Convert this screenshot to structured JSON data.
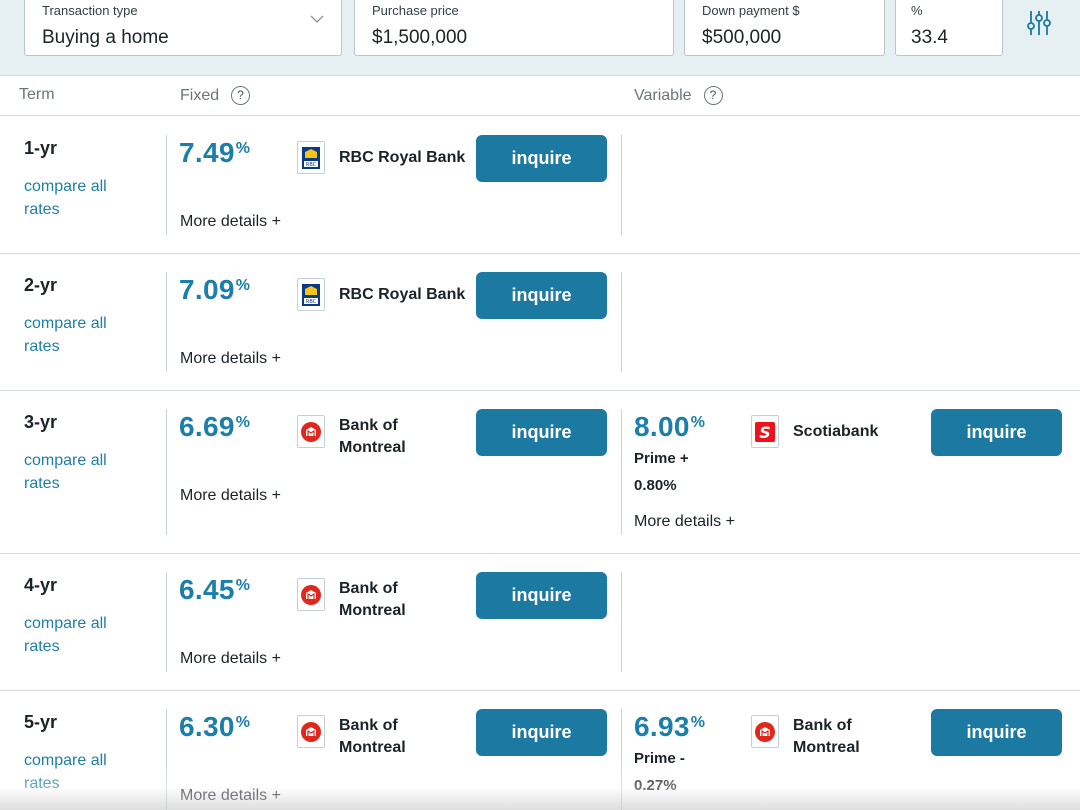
{
  "filters": {
    "transaction_type": {
      "label": "Transaction type",
      "value": "Buying a home"
    },
    "purchase_price": {
      "label": "Purchase price",
      "value": "$1,500,000"
    },
    "down_payment": {
      "label": "Down payment $",
      "value": "$500,000"
    },
    "percent": {
      "label": "%",
      "value": "33.4"
    },
    "settings_icon": "sliders-icon"
  },
  "table_header": {
    "term": "Term",
    "fixed": "Fixed",
    "variable": "Variable",
    "help_icon": "?"
  },
  "common": {
    "compare_all": "compare all rates",
    "more_details": "More details +",
    "inquire": "inquire",
    "rate_suffix": "%"
  },
  "rows": [
    {
      "term": "1-yr",
      "fixed": {
        "rate": "7.49",
        "lender": "RBC Royal Bank",
        "logo": "rbc-logo-icon"
      },
      "variable": null
    },
    {
      "term": "2-yr",
      "fixed": {
        "rate": "7.09",
        "lender": "RBC Royal Bank",
        "logo": "rbc-logo-icon"
      },
      "variable": null
    },
    {
      "term": "3-yr",
      "fixed": {
        "rate": "6.69",
        "lender": "Bank of Montreal",
        "logo": "bmo-logo-icon"
      },
      "variable": {
        "rate": "8.00",
        "lender": "Scotiabank",
        "logo": "scotiabank-logo-icon",
        "prime_label": "Prime +",
        "prime_offset": "0.80%"
      }
    },
    {
      "term": "4-yr",
      "fixed": {
        "rate": "6.45",
        "lender": "Bank of Montreal",
        "logo": "bmo-logo-icon"
      },
      "variable": null
    },
    {
      "term": "5-yr",
      "fixed": {
        "rate": "6.30",
        "lender": "Bank of Montreal",
        "logo": "bmo-logo-icon"
      },
      "variable": {
        "rate": "6.93",
        "lender": "Bank of Montreal",
        "logo": "bmo-logo-icon",
        "prime_label": "Prime -",
        "prime_offset": "0.27%"
      }
    }
  ],
  "colors": {
    "accent": "#1c7aa2",
    "rate_text": "#1c7eaa",
    "link": "#1f7fa3",
    "filter_bg": "#e6eff1"
  }
}
